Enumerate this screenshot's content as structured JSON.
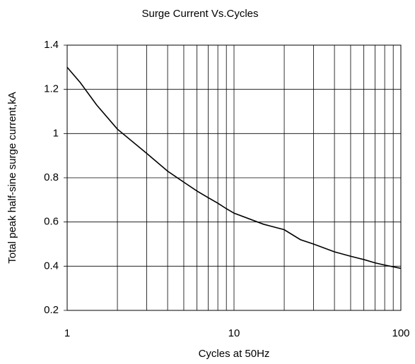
{
  "chart_data": {
    "type": "line",
    "title": "Surge Current Vs.Cycles",
    "x_label": "Cycles at 50Hz",
    "y_label": "Total peak half-sine surge current,kA",
    "x_scale": "log",
    "grid": true,
    "x": [
      1,
      1.2,
      1.5,
      2,
      3,
      4,
      5,
      6,
      7,
      8,
      9,
      10,
      15,
      20,
      25,
      30,
      40,
      50,
      60,
      70,
      80,
      100
    ],
    "series": [
      {
        "name": "Surge current",
        "color": "#000000",
        "values": [
          1.3,
          1.23,
          1.13,
          1.02,
          0.91,
          0.83,
          0.78,
          0.74,
          0.71,
          0.685,
          0.66,
          0.64,
          0.59,
          0.565,
          0.52,
          0.5,
          0.465,
          0.445,
          0.43,
          0.415,
          0.405,
          0.39
        ]
      }
    ],
    "xlim": [
      1,
      100
    ],
    "xticks": [
      1,
      10,
      100
    ],
    "x_minor_ticks": [
      2,
      3,
      4,
      5,
      6,
      7,
      8,
      9,
      20,
      30,
      40,
      50,
      60,
      70,
      80,
      90
    ],
    "ylim": [
      0.2,
      1.4
    ],
    "yticks": [
      0.2,
      0.4,
      0.6,
      0.8,
      1,
      1.2,
      1.4
    ]
  }
}
